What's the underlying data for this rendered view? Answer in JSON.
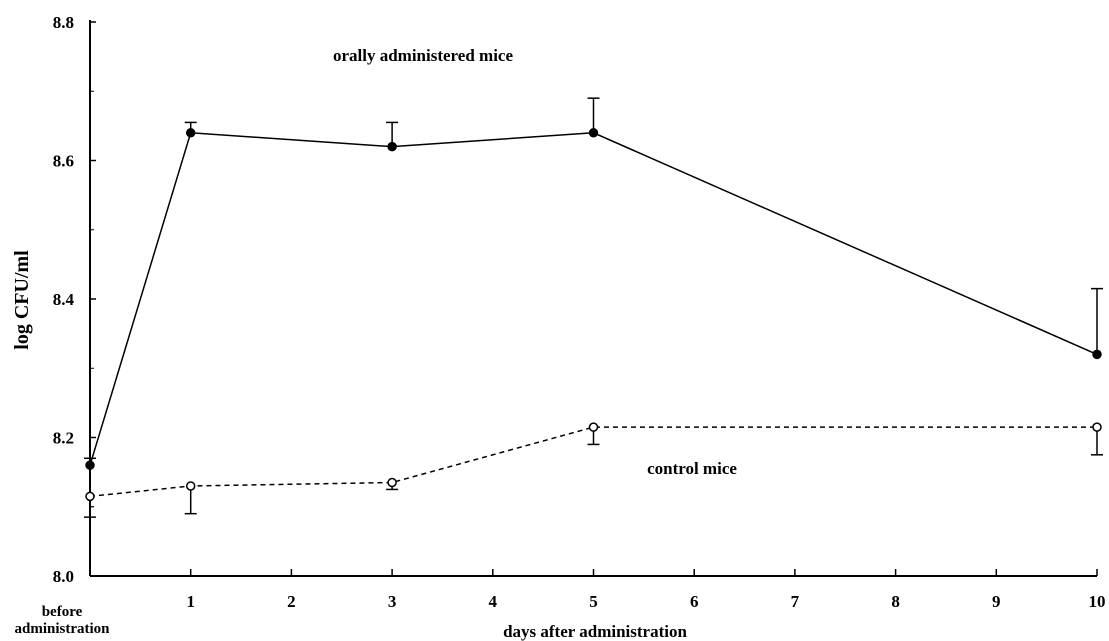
{
  "chart_data": {
    "type": "line",
    "xlabel": "days after administration",
    "ylabel": "log CFU/ml",
    "x_tick_labels": [
      "1",
      "2",
      "3",
      "4",
      "5",
      "6",
      "7",
      "8",
      "9",
      "10"
    ],
    "x_first_label": "before administration",
    "y_tick_labels": [
      "8.0",
      "8.2",
      "8.4",
      "8.6",
      "8.8"
    ],
    "ylim": [
      8.0,
      8.8
    ],
    "grid": false,
    "x": [
      "before administration",
      "1",
      "3",
      "5",
      "10"
    ],
    "series": [
      {
        "name": "orally administered mice",
        "values": [
          8.16,
          8.64,
          8.62,
          8.64,
          8.32
        ],
        "error_upper": [
          8.17,
          8.655,
          8.655,
          8.69,
          8.415
        ],
        "error_lower": [
          8.16,
          8.64,
          8.62,
          8.64,
          8.32
        ],
        "marker": "filled-circle",
        "line_style": "solid"
      },
      {
        "name": "control mice",
        "values": [
          8.115,
          8.13,
          8.135,
          8.215,
          8.215
        ],
        "error_upper": [
          8.115,
          8.13,
          8.135,
          8.215,
          8.215
        ],
        "error_lower": [
          8.085,
          8.09,
          8.125,
          8.19,
          8.175
        ],
        "marker": "open-circle",
        "line_style": "dashed"
      }
    ]
  }
}
